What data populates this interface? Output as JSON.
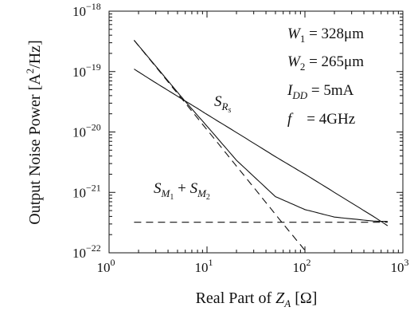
{
  "chart_data": {
    "type": "line",
    "title": "",
    "xlabel": {
      "main": "Real Part of ",
      "var": "Z",
      "sub": "A",
      "unit": " [Ω]"
    },
    "ylabel": {
      "main": "Output Noise Power [A",
      "sup": "2",
      "rest": "/Hz]"
    },
    "x_scale": "log",
    "y_scale": "log",
    "xlim": [
      1,
      1000
    ],
    "ylim": [
      1e-22,
      1e-18
    ],
    "grid": false,
    "x_ticks": [
      {
        "value": 1,
        "base": "10",
        "exp": "0"
      },
      {
        "value": 10,
        "base": "10",
        "exp": "1"
      },
      {
        "value": 100,
        "base": "10",
        "exp": "2"
      },
      {
        "value": 1000,
        "base": "10",
        "exp": "3"
      }
    ],
    "y_ticks": [
      {
        "value": 1e-22,
        "base": "10",
        "exp": "−22"
      },
      {
        "value": 1e-21,
        "base": "10",
        "exp": "−21"
      },
      {
        "value": 1e-20,
        "base": "10",
        "exp": "−20"
      },
      {
        "value": 1e-19,
        "base": "10",
        "exp": "−19"
      },
      {
        "value": 1e-18,
        "base": "10",
        "exp": "−18"
      }
    ],
    "series": [
      {
        "style": "solid",
        "label": "S_Rs",
        "x": [
          1.8,
          3,
          5,
          8,
          10,
          20,
          50,
          100,
          200,
          500,
          700
        ],
        "y": [
          1.1e-19,
          6.5e-20,
          3.9e-20,
          2.45e-20,
          1.95e-20,
          9.8e-21,
          3.9e-21,
          2e-21,
          1e-21,
          4e-22,
          2.8e-22
        ]
      },
      {
        "style": "solid",
        "label": "S_M1 + S_M2",
        "x": [
          1.8,
          2.5,
          4,
          6,
          10,
          20,
          50,
          100,
          200,
          500,
          700
        ],
        "y": [
          3.3e-19,
          1.75e-19,
          7e-20,
          3.2e-20,
          1.25e-20,
          3.4e-21,
          8.5e-22,
          5.2e-22,
          3.9e-22,
          3.35e-22,
          3.3e-22
        ]
      },
      {
        "style": "dashed",
        "label": "",
        "x": [
          1.8,
          3,
          10,
          30,
          60,
          100
        ],
        "y": [
          3.3e-19,
          1.2e-19,
          1.09e-20,
          1.21e-21,
          3e-22,
          1.1e-22
        ]
      },
      {
        "style": "dashed",
        "label": "",
        "x": [
          1.8,
          700
        ],
        "y": [
          3.2e-22,
          3.2e-22
        ]
      }
    ],
    "annotations": {
      "parameters": [
        {
          "var": "W",
          "sub": "1",
          "value": " = 328μm"
        },
        {
          "var": "W",
          "sub": "2",
          "value": " = 265μm"
        },
        {
          "var": "I",
          "sub": "DD",
          "value": " = 5mA"
        },
        {
          "var": "f",
          "sub": "",
          "value": "    = 4GHz"
        }
      ],
      "srs": {
        "var": "S",
        "sub": "R",
        "subsub": "s"
      },
      "sm": {
        "var1": "S",
        "sub1": "M",
        "subsub1": "1",
        "plus": " + ",
        "var2": "S",
        "sub2": "M",
        "subsub2": "2"
      }
    }
  }
}
